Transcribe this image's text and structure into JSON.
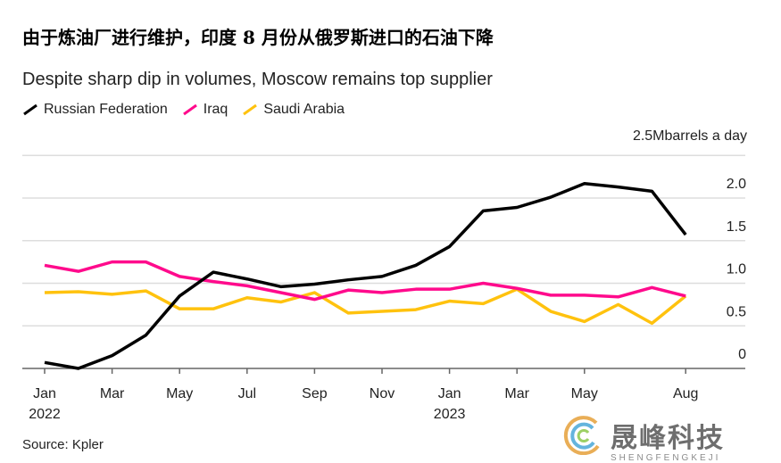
{
  "header": {
    "title": "由于炼油厂进行维护，印度 8 月份从俄罗斯进口的石油下降"
  },
  "chart_data": {
    "type": "line",
    "title": "Despite sharp dip in volumes, Moscow remains top supplier",
    "ylabel": "2.5Mbarrels a day",
    "ylim": [
      0,
      2.5
    ],
    "yticks": [
      "0",
      "0.5",
      "1.0",
      "1.5",
      "2.0"
    ],
    "xticks": [
      {
        "month": 0,
        "label": "Jan",
        "year": "2022"
      },
      {
        "month": 2,
        "label": "Mar"
      },
      {
        "month": 4,
        "label": "May"
      },
      {
        "month": 6,
        "label": "Jul"
      },
      {
        "month": 8,
        "label": "Sep"
      },
      {
        "month": 10,
        "label": "Nov"
      },
      {
        "month": 12,
        "label": "Jan",
        "year": "2023"
      },
      {
        "month": 14,
        "label": "Mar"
      },
      {
        "month": 16,
        "label": "May"
      },
      {
        "month": 19,
        "label": "Aug"
      }
    ],
    "x": [
      "2022-01",
      "2022-02",
      "2022-03",
      "2022-04",
      "2022-05",
      "2022-06",
      "2022-07",
      "2022-08",
      "2022-09",
      "2022-10",
      "2022-11",
      "2022-12",
      "2023-01",
      "2023-02",
      "2023-03",
      "2023-04",
      "2023-05",
      "2023-06",
      "2023-07",
      "2023-08"
    ],
    "series": [
      {
        "name": "Russian Federation",
        "color": "#000000",
        "values": [
          0.07,
          0.0,
          0.15,
          0.39,
          0.85,
          1.13,
          1.05,
          0.96,
          0.99,
          1.04,
          1.08,
          1.21,
          1.43,
          1.85,
          1.89,
          2.01,
          2.17,
          2.13,
          2.08,
          1.57
        ]
      },
      {
        "name": "Iraq",
        "color": "#ff0a8c",
        "values": [
          1.21,
          1.14,
          1.25,
          1.25,
          1.08,
          1.02,
          0.97,
          0.89,
          0.81,
          0.92,
          0.89,
          0.93,
          0.93,
          1.0,
          0.94,
          0.86,
          0.86,
          0.84,
          0.95,
          0.85
        ]
      },
      {
        "name": "Saudi Arabia",
        "color": "#ffc20e",
        "values": [
          0.89,
          0.9,
          0.87,
          0.91,
          0.7,
          0.7,
          0.83,
          0.78,
          0.89,
          0.65,
          0.67,
          0.69,
          0.79,
          0.76,
          0.93,
          0.67,
          0.55,
          0.75,
          0.53,
          0.85
        ]
      }
    ],
    "grid": true,
    "legend": "top-left",
    "source": "Source: Kpler"
  },
  "watermark": {
    "name": "晟峰科技",
    "pinyin": "SHENGFENGKEJI"
  }
}
